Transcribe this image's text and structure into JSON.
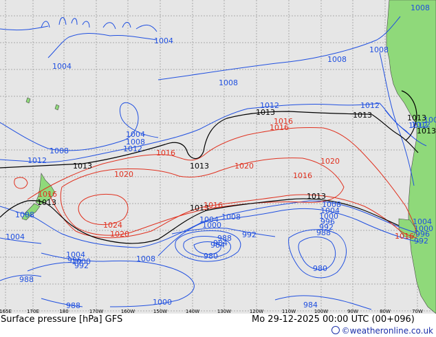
{
  "map": {
    "title": "Surface pressure [hPa] GFS",
    "date": "Mo 29-12-2025 00:00 UTC (00+096)",
    "credit": "©weatheronline.co.uk",
    "credit_icon": "copyright-icon",
    "colors": {
      "low": "#1f4fe0",
      "high": "#e0301e",
      "standard": "#000000",
      "land": "#8fd97a",
      "ocean": "#e6e6e6"
    },
    "longitude_labels": [
      "165E",
      "170E",
      "180",
      "170W",
      "160W",
      "150W",
      "140W",
      "130W",
      "120W",
      "110W",
      "100W",
      "90W",
      "80W",
      "70W"
    ],
    "isobar_labels": [
      {
        "text": "1008",
        "kind": "low"
      },
      {
        "text": "1004",
        "kind": "low"
      },
      {
        "text": "1004",
        "kind": "low"
      },
      {
        "text": "1008",
        "kind": "low"
      },
      {
        "text": "1008",
        "kind": "low"
      },
      {
        "text": "1008",
        "kind": "low"
      },
      {
        "text": "1012",
        "kind": "low"
      },
      {
        "text": "1012",
        "kind": "low"
      },
      {
        "text": "1012",
        "kind": "low"
      },
      {
        "text": "1013",
        "kind": "standard"
      },
      {
        "text": "1013",
        "kind": "standard"
      },
      {
        "text": "1013",
        "kind": "standard"
      },
      {
        "text": "1013",
        "kind": "standard"
      },
      {
        "text": "1016",
        "kind": "high"
      },
      {
        "text": "1004",
        "kind": "low"
      },
      {
        "text": "1008",
        "kind": "low"
      },
      {
        "text": "1012",
        "kind": "low"
      },
      {
        "text": "1016",
        "kind": "high"
      },
      {
        "text": "1008",
        "kind": "low"
      },
      {
        "text": "1012",
        "kind": "low"
      },
      {
        "text": "1013",
        "kind": "standard"
      },
      {
        "text": "1013",
        "kind": "standard"
      },
      {
        "text": "1020",
        "kind": "high"
      },
      {
        "text": "1020",
        "kind": "high"
      },
      {
        "text": "1020",
        "kind": "high"
      },
      {
        "text": "1016",
        "kind": "high"
      },
      {
        "text": "1016",
        "kind": "high"
      },
      {
        "text": "1008",
        "kind": "low"
      },
      {
        "text": "1013",
        "kind": "standard"
      },
      {
        "text": "1013",
        "kind": "standard"
      },
      {
        "text": "1004",
        "kind": "low"
      },
      {
        "text": "1013",
        "kind": "standard"
      },
      {
        "text": "1016",
        "kind": "high"
      },
      {
        "text": "1008",
        "kind": "low"
      },
      {
        "text": "1004",
        "kind": "low"
      },
      {
        "text": "1000",
        "kind": "low"
      },
      {
        "text": "1008",
        "kind": "low"
      },
      {
        "text": "1004",
        "kind": "low"
      },
      {
        "text": "1000",
        "kind": "low"
      },
      {
        "text": "996",
        "kind": "low"
      },
      {
        "text": "992",
        "kind": "low"
      },
      {
        "text": "988",
        "kind": "low"
      },
      {
        "text": "984",
        "kind": "low"
      },
      {
        "text": "1024",
        "kind": "high"
      },
      {
        "text": "1020",
        "kind": "high"
      },
      {
        "text": "1016",
        "kind": "high"
      },
      {
        "text": "1004",
        "kind": "low"
      },
      {
        "text": "1000",
        "kind": "low"
      },
      {
        "text": "996",
        "kind": "low"
      },
      {
        "text": "992",
        "kind": "low"
      },
      {
        "text": "1008",
        "kind": "low"
      },
      {
        "text": "1004",
        "kind": "low"
      },
      {
        "text": "1000",
        "kind": "low"
      },
      {
        "text": "996",
        "kind": "low"
      },
      {
        "text": "992",
        "kind": "low"
      },
      {
        "text": "988",
        "kind": "low"
      },
      {
        "text": "984",
        "kind": "low"
      },
      {
        "text": "980",
        "kind": "low"
      },
      {
        "text": "988",
        "kind": "low"
      },
      {
        "text": "992",
        "kind": "low"
      },
      {
        "text": "988",
        "kind": "low"
      },
      {
        "text": "1000",
        "kind": "low"
      },
      {
        "text": "980",
        "kind": "low"
      },
      {
        "text": "984",
        "kind": "low"
      },
      {
        "text": "1016",
        "kind": "high"
      },
      {
        "text": "1012",
        "kind": "low"
      },
      {
        "text": "1008",
        "kind": "low"
      }
    ]
  }
}
